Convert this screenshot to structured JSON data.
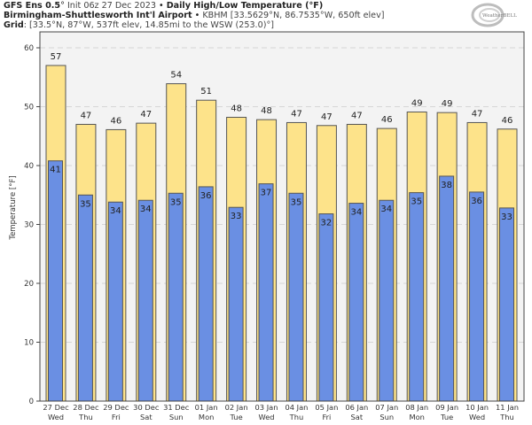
{
  "header": {
    "model": "GFS Ens 0.5",
    "model_degree": "°",
    "init": " Init 06z 27 Dec 2023",
    "bullet": " • ",
    "product": "Daily High/Low Temperature (°F)",
    "station_name": "Birmingham-Shuttlesworth Int'l Airport",
    "station_info": "KBHM [33.5629°N, 86.7535°W, 650ft elev]",
    "grid_label": "Grid",
    "grid_info": ": [33.5°N, 87°W, 537ft elev, 14.85mi to the WSW (253.0)°]"
  },
  "logo": {
    "text": "WeatherBELL"
  },
  "colors": {
    "high_bar": "#fde38a",
    "low_bar": "#6a8fe3",
    "bar_edge": "#555555",
    "plot_bg": "#f3f3f3",
    "grid": "#d6d6d6"
  },
  "chart_data": {
    "type": "bar",
    "title": "Daily High/Low Temperature (°F)",
    "xlabel": "",
    "ylabel": "Temperature [°F]",
    "ylim": [
      0,
      63
    ],
    "yticks": [
      0,
      10,
      20,
      30,
      40,
      50,
      60
    ],
    "grid": true,
    "categories": [
      {
        "date": "27 Dec",
        "day": "Wed"
      },
      {
        "date": "28 Dec",
        "day": "Thu"
      },
      {
        "date": "29 Dec",
        "day": "Fri"
      },
      {
        "date": "30 Dec",
        "day": "Sat"
      },
      {
        "date": "31 Dec",
        "day": "Sun"
      },
      {
        "date": "01 Jan",
        "day": "Mon"
      },
      {
        "date": "02 Jan",
        "day": "Tue"
      },
      {
        "date": "03 Jan",
        "day": "Wed"
      },
      {
        "date": "04 Jan",
        "day": "Thu"
      },
      {
        "date": "05 Jan",
        "day": "Fri"
      },
      {
        "date": "06 Jan",
        "day": "Sat"
      },
      {
        "date": "07 Jan",
        "day": "Sun"
      },
      {
        "date": "08 Jan",
        "day": "Mon"
      },
      {
        "date": "09 Jan",
        "day": "Tue"
      },
      {
        "date": "10 Jan",
        "day": "Wed"
      },
      {
        "date": "11 Jan",
        "day": "Thu"
      }
    ],
    "series": [
      {
        "name": "High",
        "labels": [
          "57",
          "47",
          "46",
          "47",
          "54",
          "51",
          "48",
          "48",
          "47",
          "47",
          "47",
          "46",
          "49",
          "49",
          "47",
          "46"
        ],
        "values": [
          57.0,
          47.0,
          46.1,
          47.2,
          53.9,
          51.1,
          48.2,
          47.8,
          47.3,
          46.8,
          47.0,
          46.3,
          49.1,
          49.0,
          47.3,
          46.2
        ]
      },
      {
        "name": "Low",
        "labels": [
          "41",
          "35",
          "34",
          "34",
          "35",
          "36",
          "33",
          "37",
          "35",
          "32",
          "34",
          "34",
          "35",
          "38",
          "36",
          "33"
        ],
        "values": [
          40.8,
          35.0,
          33.8,
          34.1,
          35.3,
          36.4,
          32.9,
          36.9,
          35.3,
          31.8,
          33.6,
          34.1,
          35.4,
          38.2,
          35.5,
          32.8
        ]
      }
    ]
  }
}
